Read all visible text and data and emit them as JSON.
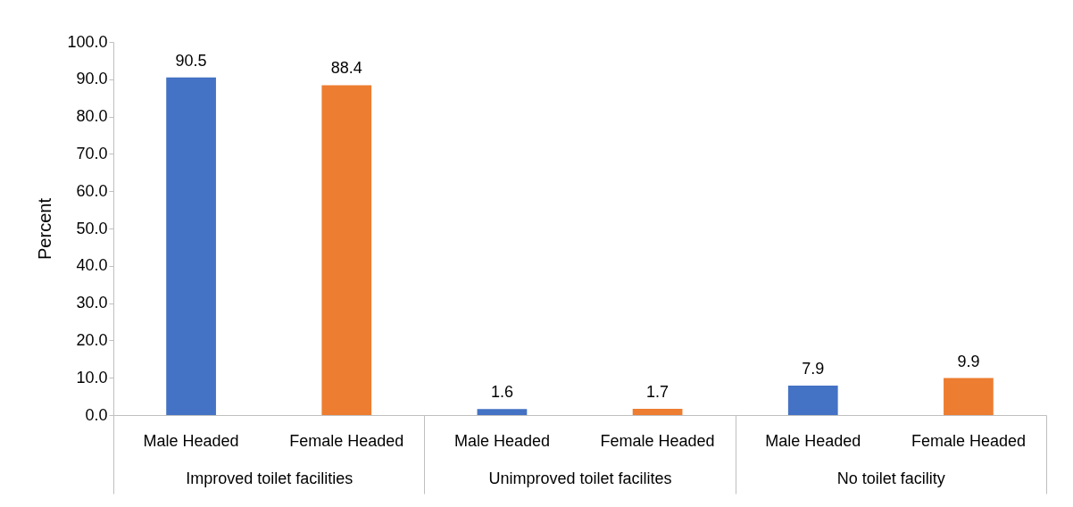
{
  "chart_data": {
    "type": "bar",
    "ylabel": "Percent",
    "categories": [
      "Improved toilet facilities",
      "Unimproved toilet facilites",
      "No toilet facility"
    ],
    "series": [
      {
        "name": "Male Headed",
        "color": "#4472c4",
        "values": [
          90.5,
          1.6,
          7.9
        ]
      },
      {
        "name": "Female Headed",
        "color": "#ed7d31",
        "values": [
          88.4,
          1.7,
          9.9
        ]
      }
    ],
    "data_labels": true,
    "ylim": [
      0,
      100
    ],
    "yticks": [
      {
        "value": 0,
        "label": "0.0"
      },
      {
        "value": 10,
        "label": "10.0"
      },
      {
        "value": 20,
        "label": "20.0"
      },
      {
        "value": 30,
        "label": "30.0"
      },
      {
        "value": 40,
        "label": "40.0"
      },
      {
        "value": 50,
        "label": "50.0"
      },
      {
        "value": 60,
        "label": "60.0"
      },
      {
        "value": 70,
        "label": "70.0"
      },
      {
        "value": 80,
        "label": "80.0"
      },
      {
        "value": 90,
        "label": "90.0"
      },
      {
        "value": 100,
        "label": "100.0"
      }
    ]
  }
}
